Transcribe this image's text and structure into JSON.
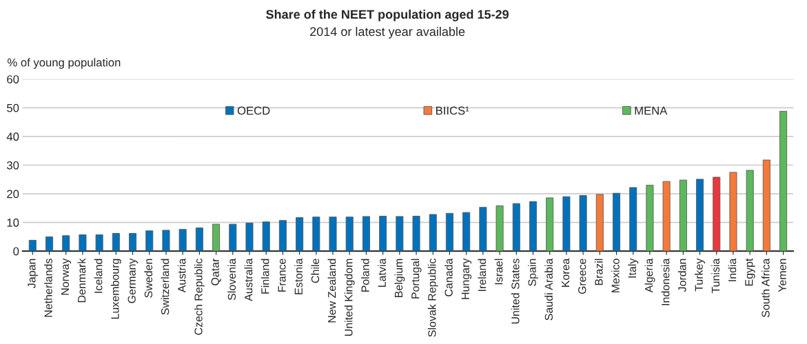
{
  "chart_data": {
    "type": "bar",
    "title": "Share of the NEET population aged 15-29",
    "subtitle": "2014 or latest year available",
    "ylabel": "% of young population",
    "categories": [
      "Japan",
      "Netherlands",
      "Norway",
      "Denmark",
      "Iceland",
      "Luxembourg",
      "Germany",
      "Sweden",
      "Switzerland",
      "Austria",
      "Czech Republic",
      "Qatar",
      "Slovenia",
      "Australia",
      "Finland",
      "France",
      "Estonia",
      "Chile",
      "New Zealand",
      "United Kingdom",
      "Poland",
      "Latvia",
      "Belgium",
      "Portugal",
      "Slovak Republic",
      "Canada",
      "Hungary",
      "Ireland",
      "Israel",
      "United States",
      "Spain",
      "Saudi Arabia",
      "Korea",
      "Greece",
      "Brazil",
      "Mexico",
      "Italy",
      "Algeria",
      "Indonesia",
      "Jordan",
      "Turkey",
      "Tunisia",
      "India",
      "Egypt",
      "South Africa",
      "Yemen"
    ],
    "series": [
      {
        "name": "OECD",
        "color": "#0072bc",
        "values": [
          3.8,
          5.0,
          5.4,
          5.7,
          5.7,
          6.2,
          6.2,
          7.1,
          7.3,
          7.6,
          8.1,
          null,
          9.4,
          9.8,
          10.2,
          10.7,
          11.7,
          11.9,
          11.9,
          11.9,
          12.1,
          12.2,
          12.1,
          12.2,
          12.8,
          13.2,
          13.5,
          15.3,
          null,
          16.6,
          17.3,
          null,
          19.0,
          19.4,
          null,
          20.2,
          22.2,
          null,
          null,
          null,
          25.1,
          null,
          null,
          null,
          null,
          null
        ]
      },
      {
        "name": "BIICS¹",
        "color": "#f47a3a",
        "values": [
          null,
          null,
          null,
          null,
          null,
          null,
          null,
          null,
          null,
          null,
          null,
          null,
          null,
          null,
          null,
          null,
          null,
          null,
          null,
          null,
          null,
          null,
          null,
          null,
          null,
          null,
          null,
          null,
          null,
          null,
          null,
          null,
          null,
          null,
          19.8,
          null,
          null,
          null,
          24.3,
          null,
          null,
          null,
          27.5,
          null,
          31.8,
          null
        ]
      },
      {
        "name": "MENA",
        "color": "#5cb85c",
        "values": [
          null,
          null,
          null,
          null,
          null,
          null,
          null,
          null,
          null,
          null,
          null,
          9.4,
          null,
          null,
          null,
          null,
          null,
          null,
          null,
          null,
          null,
          null,
          null,
          null,
          null,
          null,
          null,
          null,
          15.8,
          null,
          null,
          18.6,
          null,
          null,
          null,
          null,
          null,
          23.0,
          null,
          24.8,
          null,
          null,
          null,
          28.2,
          null,
          48.8
        ]
      },
      {
        "color": "#e8383d",
        "values": [
          null,
          null,
          null,
          null,
          null,
          null,
          null,
          null,
          null,
          null,
          null,
          null,
          null,
          null,
          null,
          null,
          null,
          null,
          null,
          null,
          null,
          null,
          null,
          null,
          null,
          null,
          null,
          null,
          null,
          null,
          null,
          null,
          null,
          null,
          null,
          null,
          null,
          null,
          null,
          null,
          null,
          25.8,
          null,
          null,
          null,
          null
        ]
      }
    ],
    "ylim": [
      0,
      60
    ],
    "yticks": [
      0,
      10,
      20,
      30,
      40,
      50,
      60
    ],
    "grid": "y",
    "legend": "top"
  }
}
